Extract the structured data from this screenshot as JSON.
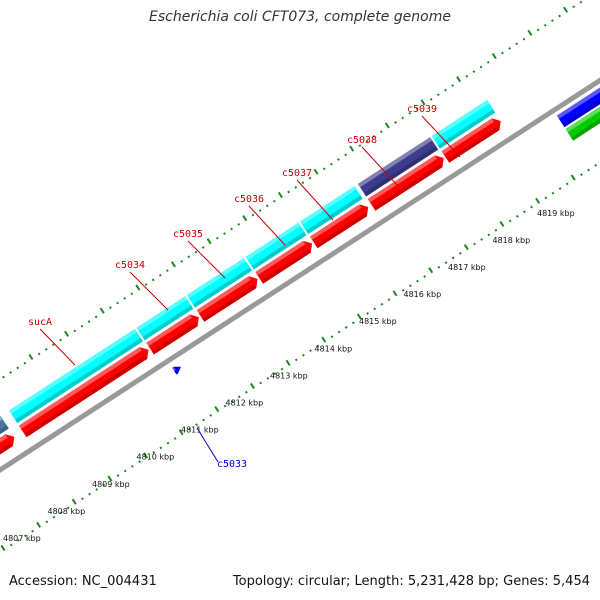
{
  "title": "Escherichia coli CFT073, complete genome",
  "footer": {
    "accession": "Accession: NC_004431",
    "stats": "Topology: circular; Length: 5,231,428 bp; Genes: 5,454"
  },
  "colors": {
    "forward_gene": "#00ffff",
    "forward_gene_alt": "#3c3c8c",
    "forward_gene_edge": "#4a7aa0",
    "forward_cds": "#ff0000",
    "reverse_gene": "#0000ff",
    "reverse_cds": "#00cc00",
    "backbone": "#999999",
    "tick": "#1a8a1a",
    "forward_label": "#cc0000",
    "reverse_label": "#0000cc"
  },
  "scale": {
    "unit": "kbp",
    "labels": [
      "4807 kbp",
      "4808 kbp",
      "4809 kbp",
      "4810 kbp",
      "4811 kbp",
      "4812 kbp",
      "4813 kbp",
      "4814 kbp",
      "4815 kbp",
      "4816 kbp",
      "4817 kbp",
      "4818 kbp",
      "4819 kbp"
    ]
  },
  "genes": {
    "forward": [
      {
        "name": "sucA",
        "color": "forward_gene"
      },
      {
        "name": "c5034",
        "color": "forward_gene"
      },
      {
        "name": "c5035",
        "color": "forward_gene"
      },
      {
        "name": "c5036",
        "color": "forward_gene"
      },
      {
        "name": "c5037",
        "color": "forward_gene"
      },
      {
        "name": "c5038",
        "color": "forward_gene_alt"
      },
      {
        "name": "c5039",
        "color": "forward_gene"
      }
    ],
    "reverse": [
      {
        "name": "c5033"
      }
    ]
  }
}
